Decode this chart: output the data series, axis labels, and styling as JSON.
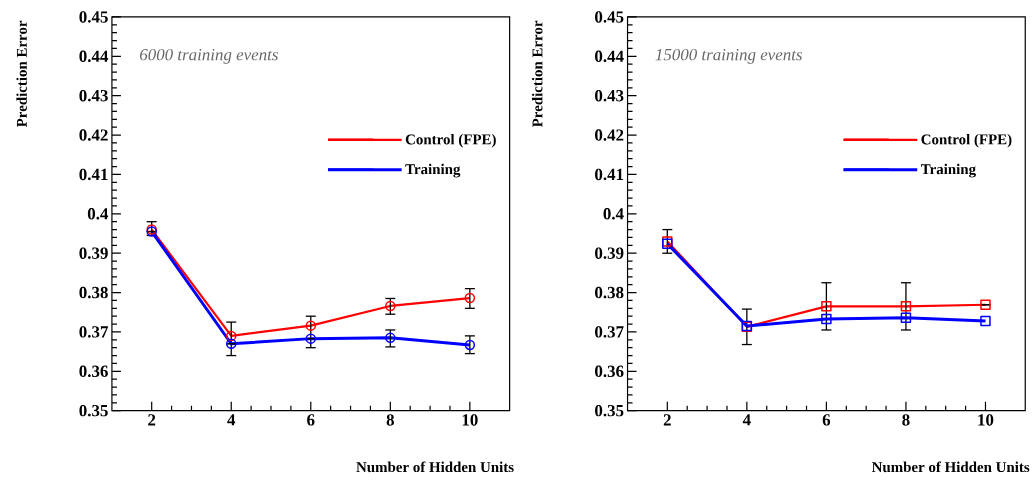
{
  "chart_data": [
    {
      "type": "line",
      "xlabel": "Number of Hidden Units",
      "ylabel": "Prediction Error",
      "annotations": [
        "6000 training events"
      ],
      "x": [
        2,
        4,
        6,
        8,
        10
      ],
      "xlim": [
        1,
        11
      ],
      "xticks": [
        2,
        4,
        6,
        8,
        10
      ],
      "ylim": [
        0.35,
        0.45
      ],
      "yticks": [
        0.35,
        0.36,
        0.37,
        0.38,
        0.39,
        {
          "value": 0.4,
          "label": "0.4"
        },
        0.41,
        0.42,
        0.43,
        0.44,
        0.45
      ],
      "legend": "right",
      "marker": "circle",
      "grid": false,
      "series": [
        {
          "name": "Control (FPE)",
          "color": "#ff0000",
          "values": [
            0.396,
            0.369,
            0.3716,
            0.3766,
            0.3786
          ],
          "errors": [
            [
              0.3945,
              0.398
            ],
            [
              0.364,
              0.3725
            ],
            [
              0.366,
              0.374
            ],
            [
              0.3745,
              0.3785
            ],
            [
              0.376,
              0.381
            ]
          ]
        },
        {
          "name": "Training",
          "color": "#0000ff",
          "values": [
            0.3955,
            0.367,
            0.3683,
            0.3685,
            0.3667
          ],
          "errors": [
            null,
            null,
            null,
            [
              0.3662,
              0.3705
            ],
            [
              0.3645,
              0.369
            ]
          ]
        }
      ]
    },
    {
      "type": "line",
      "xlabel": "Number of Hidden Units",
      "ylabel": "Prediction Error",
      "annotations": [
        "15000 training events"
      ],
      "x": [
        2,
        4,
        6,
        8,
        10
      ],
      "xlim": [
        1,
        11
      ],
      "xticks": [
        2,
        4,
        6,
        8,
        10
      ],
      "ylim": [
        0.35,
        0.45
      ],
      "yticks": [
        0.35,
        0.36,
        0.37,
        0.38,
        0.39,
        {
          "value": 0.4,
          "label": "0.4"
        },
        0.41,
        0.42,
        0.43,
        0.44,
        0.45
      ],
      "legend": "right",
      "marker": "square",
      "grid": false,
      "series": [
        {
          "name": "Control (FPE)",
          "color": "#ff0000",
          "values": [
            0.393,
            0.3713,
            0.3765,
            0.3765,
            0.3769
          ],
          "errors": [
            0.003,
            0.0045,
            0.006,
            0.006,
            null
          ]
        },
        {
          "name": "Training",
          "color": "#0000ff",
          "values": [
            0.3924,
            0.3715,
            0.3733,
            0.3736,
            0.3728
          ]
        }
      ]
    }
  ]
}
